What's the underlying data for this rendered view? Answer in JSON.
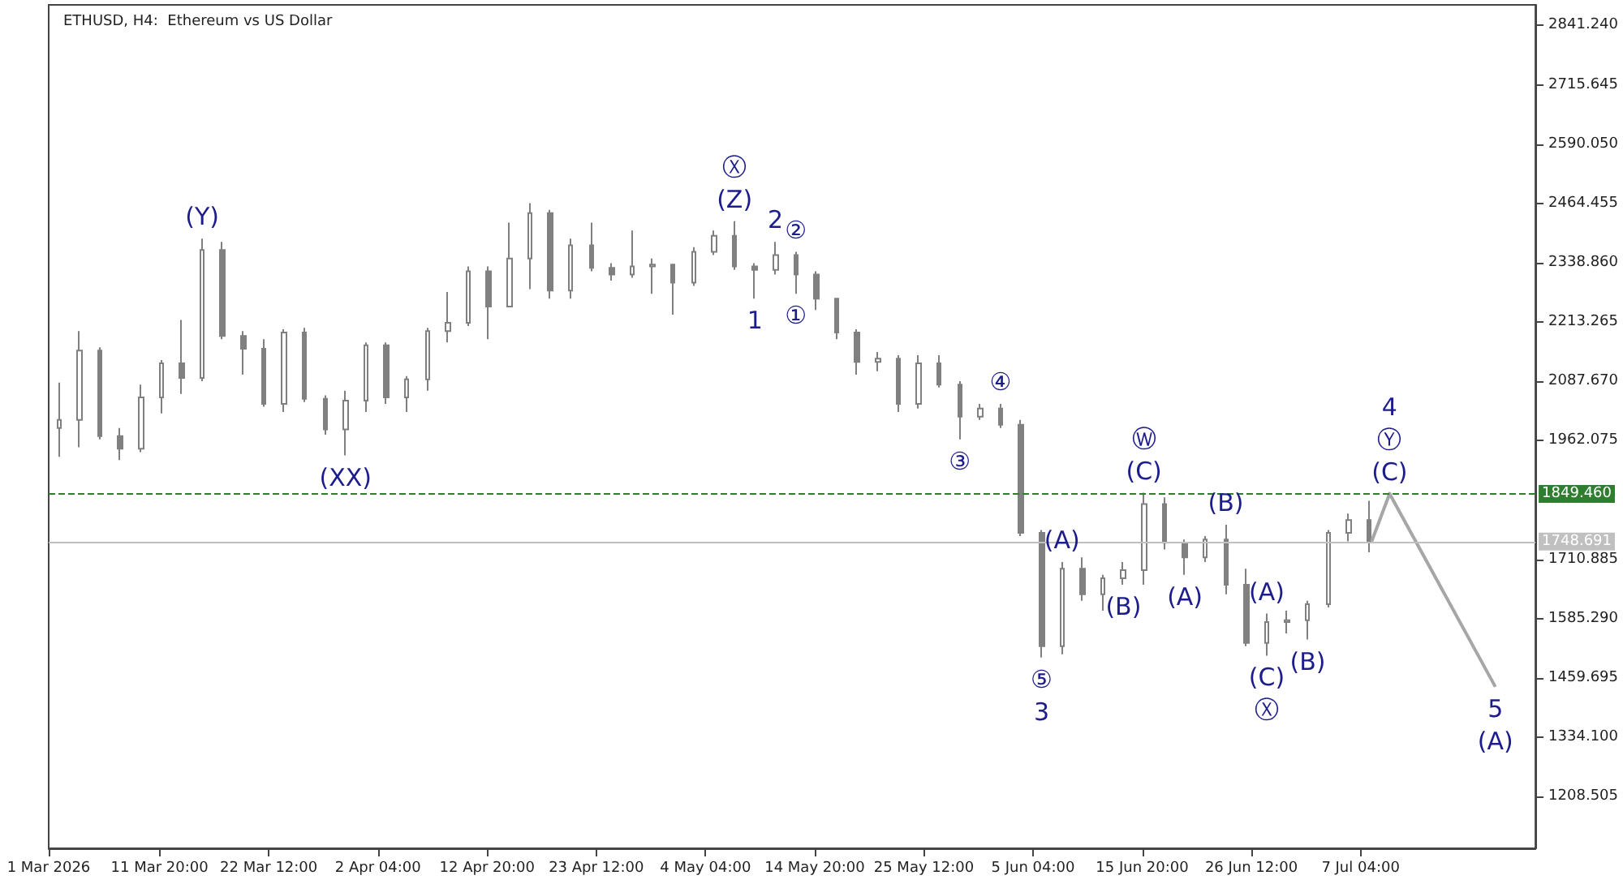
{
  "chart_data": {
    "type": "candlestick",
    "title": "ETHUSD, H4:  Ethereum vs US Dollar",
    "series": [
      {
        "color": "#808080",
        "x": [
          "2026-03-02",
          "2026-03-04",
          "2026-03-06",
          "2026-03-08",
          "2026-03-10",
          "2026-03-12",
          "2026-03-14",
          "2026-03-16",
          "2026-03-18",
          "2026-03-20",
          "2026-03-22",
          "2026-03-24",
          "2026-03-26",
          "2026-03-28",
          "2026-03-30",
          "2026-04-01",
          "2026-04-03",
          "2026-04-05",
          "2026-04-07",
          "2026-04-09",
          "2026-04-11",
          "2026-04-13",
          "2026-04-15",
          "2026-04-17",
          "2026-04-19",
          "2026-04-21",
          "2026-04-23",
          "2026-04-25",
          "2026-04-27",
          "2026-04-29",
          "2026-05-01",
          "2026-05-03",
          "2026-05-05",
          "2026-05-07",
          "2026-05-09",
          "2026-05-11",
          "2026-05-13",
          "2026-05-15",
          "2026-05-17",
          "2026-05-19",
          "2026-05-21",
          "2026-05-23",
          "2026-05-25",
          "2026-05-27",
          "2026-05-29",
          "2026-05-31",
          "2026-06-02",
          "2026-06-04",
          "2026-06-06",
          "2026-06-08",
          "2026-06-10",
          "2026-06-12",
          "2026-06-14",
          "2026-06-16",
          "2026-06-18",
          "2026-06-20",
          "2026-06-22",
          "2026-06-24",
          "2026-06-26",
          "2026-06-28",
          "2026-06-30",
          "2026-07-02",
          "2026-07-04",
          "2026-07-06",
          "2026-07-08"
        ],
        "ohlc": [
          [
            1989,
            2085,
            1928,
            2006
          ],
          [
            2006,
            2194,
            1948,
            2153
          ],
          [
            2153,
            2160,
            1965,
            1972
          ],
          [
            1972,
            1989,
            1921,
            1945
          ],
          [
            1945,
            2081,
            1938,
            2054
          ],
          [
            2054,
            2133,
            2020,
            2126
          ],
          [
            2126,
            2218,
            2061,
            2095
          ],
          [
            2095,
            2390,
            2088,
            2366
          ],
          [
            2366,
            2383,
            2177,
            2184
          ],
          [
            2184,
            2194,
            2102,
            2157
          ],
          [
            2157,
            2177,
            2034,
            2040
          ],
          [
            2040,
            2198,
            2023,
            2191
          ],
          [
            2191,
            2201,
            2044,
            2051
          ],
          [
            2051,
            2058,
            1975,
            1986
          ],
          [
            1986,
            2068,
            1931,
            2047
          ],
          [
            2047,
            2170,
            2023,
            2164
          ],
          [
            2164,
            2170,
            2040,
            2054
          ],
          [
            2054,
            2099,
            2023,
            2092
          ],
          [
            2092,
            2201,
            2068,
            2194
          ],
          [
            2194,
            2277,
            2170,
            2212
          ],
          [
            2212,
            2331,
            2205,
            2321
          ],
          [
            2321,
            2331,
            2177,
            2246
          ],
          [
            2246,
            2424,
            2246,
            2348
          ],
          [
            2348,
            2465,
            2283,
            2444
          ],
          [
            2444,
            2451,
            2263,
            2280
          ],
          [
            2280,
            2390,
            2263,
            2376
          ],
          [
            2376,
            2424,
            2321,
            2328
          ],
          [
            2328,
            2338,
            2301,
            2314
          ],
          [
            2314,
            2407,
            2307,
            2331
          ],
          [
            2331,
            2348,
            2273,
            2335
          ],
          [
            2335,
            2335,
            2229,
            2297
          ],
          [
            2297,
            2372,
            2290,
            2362
          ],
          [
            2362,
            2407,
            2355,
            2396
          ],
          [
            2396,
            2427,
            2324,
            2331
          ],
          [
            2331,
            2338,
            2263,
            2324
          ],
          [
            2324,
            2383,
            2314,
            2355
          ],
          [
            2355,
            2362,
            2273,
            2314
          ],
          [
            2314,
            2321,
            2239,
            2263
          ],
          [
            2263,
            2263,
            2177,
            2191
          ],
          [
            2191,
            2198,
            2102,
            2129
          ],
          [
            2129,
            2150,
            2109,
            2136
          ],
          [
            2136,
            2143,
            2023,
            2040
          ],
          [
            2040,
            2143,
            2030,
            2126
          ],
          [
            2126,
            2143,
            2075,
            2081
          ],
          [
            2081,
            2088,
            1965,
            2013
          ],
          [
            2013,
            2040,
            2006,
            2030
          ],
          [
            2030,
            2040,
            1989,
            1996
          ],
          [
            1996,
            2006,
            1760,
            1767
          ],
          [
            1767,
            1773,
            1503,
            1527
          ],
          [
            1527,
            1705,
            1510,
            1691
          ],
          [
            1691,
            1715,
            1623,
            1637
          ],
          [
            1637,
            1678,
            1602,
            1671
          ],
          [
            1671,
            1705,
            1657,
            1688
          ],
          [
            1688,
            1852,
            1657,
            1828
          ],
          [
            1828,
            1842,
            1732,
            1746
          ],
          [
            1746,
            1753,
            1678,
            1715
          ],
          [
            1715,
            1760,
            1705,
            1753
          ],
          [
            1753,
            1784,
            1637,
            1657
          ],
          [
            1657,
            1691,
            1527,
            1534
          ],
          [
            1534,
            1596,
            1507,
            1578
          ],
          [
            1578,
            1602,
            1554,
            1582
          ],
          [
            1582,
            1623,
            1541,
            1616
          ],
          [
            1616,
            1773,
            1609,
            1767
          ],
          [
            1767,
            1808,
            1749,
            1794
          ],
          [
            1794,
            1835,
            1726,
            1749
          ]
        ]
      },
      {
        "type": "line",
        "color": "#a6a6a6",
        "line_style": "solid",
        "x": [
          "2026-07-08T06:00",
          "2026-07-10T00:00",
          "2026-07-20T08:00"
        ],
        "values": [
          1749,
          1850,
          1441
        ]
      }
    ],
    "annotations": [
      {
        "text": "(Y)",
        "x": "2026-03-16",
        "y": 2390
      },
      {
        "text": "(XX)",
        "x": "2026-03-30",
        "y": 1931
      },
      {
        "text": "(Z)",
        "x": "2026-05-07",
        "y": 2427
      },
      {
        "text": "Ⓧ",
        "x": "2026-05-07",
        "y": 2427
      },
      {
        "text": "1",
        "x": "2026-05-09",
        "y": 2263
      },
      {
        "text": "2",
        "x": "2026-05-11",
        "y": 2383
      },
      {
        "text": "②",
        "x": "2026-05-13",
        "y": 2362
      },
      {
        "text": "①",
        "x": "2026-05-13",
        "y": 2273
      },
      {
        "text": "③",
        "x": "2026-05-29",
        "y": 1965
      },
      {
        "text": "④",
        "x": "2026-06-02",
        "y": 2040
      },
      {
        "text": "⑤",
        "x": "2026-06-06",
        "y": 1503
      },
      {
        "text": "3",
        "x": "2026-06-06",
        "y": 1503
      },
      {
        "text": "(A)",
        "x": "2026-06-08",
        "y": 1705
      },
      {
        "text": "(B)",
        "x": "2026-06-14",
        "y": 1657
      },
      {
        "text": "(C)",
        "x": "2026-06-16",
        "y": 1852
      },
      {
        "text": "Ⓦ",
        "x": "2026-06-16",
        "y": 1852
      },
      {
        "text": "(A)",
        "x": "2026-06-20",
        "y": 1678
      },
      {
        "text": "(B)",
        "x": "2026-06-24",
        "y": 1784
      },
      {
        "text": "(A)",
        "x": "2026-06-28",
        "y": 1596
      },
      {
        "text": "(C)",
        "x": "2026-06-28",
        "y": 1507
      },
      {
        "text": "Ⓧ",
        "x": "2026-06-28",
        "y": 1507
      },
      {
        "text": "(B)",
        "x": "2026-07-02",
        "y": 1541
      },
      {
        "text": "(C)",
        "x": "2026-07-10T00:00",
        "y": 1850
      },
      {
        "text": "Ⓨ",
        "x": "2026-07-10T00:00",
        "y": 1850
      },
      {
        "text": "4",
        "x": "2026-07-10T00:00",
        "y": 1850
      },
      {
        "text": "5",
        "x": "2026-07-20T08:00",
        "y": 1441
      },
      {
        "text": "(A)",
        "x": "2026-07-20T08:00",
        "y": 1441
      }
    ],
    "xlim": [
      "2026-03-01T00:00",
      "2026-07-24T06:00"
    ],
    "xticks": [
      {
        "value": "2026-03-01T00:00",
        "label": "1 Mar 2026"
      },
      {
        "value": "2026-03-11T20:00",
        "label": "11 Mar 20:00"
      },
      {
        "value": "2026-03-22T12:00",
        "label": "22 Mar 12:00"
      },
      {
        "value": "2026-04-02T04:00",
        "label": "2 Apr 04:00"
      },
      {
        "value": "2026-04-12T20:00",
        "label": "12 Apr 20:00"
      },
      {
        "value": "2026-04-23T12:00",
        "label": "23 Apr 12:00"
      },
      {
        "value": "2026-05-04T04:00",
        "label": "4 May 04:00"
      },
      {
        "value": "2026-05-14T20:00",
        "label": "14 May 20:00"
      },
      {
        "value": "2026-05-25T12:00",
        "label": "25 May 12:00"
      },
      {
        "value": "2026-06-05T04:00",
        "label": "5 Jun 04:00"
      },
      {
        "value": "2026-06-15T20:00",
        "label": "15 Jun 20:00"
      },
      {
        "value": "2026-06-26T12:00",
        "label": "26 Jun 12:00"
      },
      {
        "value": "2026-07-07T04:00",
        "label": "7 Jul 04:00"
      }
    ],
    "ylim": [
      1099,
      2885
    ],
    "yticks": [
      {
        "value": 1208.505,
        "label": "1208.505"
      },
      {
        "value": 1334.1,
        "label": "1334.100"
      },
      {
        "value": 1459.695,
        "label": "1459.695"
      },
      {
        "value": 1585.29,
        "label": "1585.290"
      },
      {
        "value": 1710.885,
        "label": "1710.885"
      },
      {
        "value": 1962.075,
        "label": "1962.075"
      },
      {
        "value": 2087.67,
        "label": "2087.670"
      },
      {
        "value": 2213.265,
        "label": "2213.265"
      },
      {
        "value": 2338.86,
        "label": "2338.860"
      },
      {
        "value": 2464.455,
        "label": "2464.455"
      },
      {
        "value": 2590.05,
        "label": "2590.050"
      },
      {
        "value": 2715.645,
        "label": "2715.645"
      },
      {
        "value": 2841.24,
        "label": "2841.240"
      }
    ],
    "ref_lines": [
      {
        "axis": "y",
        "value": 1849.46,
        "label": "1849.460",
        "color": "#2f7d2f",
        "line_style": "dashed"
      },
      {
        "axis": "y",
        "value": 1748.691,
        "label": "1748.691",
        "color": "#c0c0c0",
        "line_style": "solid"
      }
    ],
    "grid": false
  }
}
